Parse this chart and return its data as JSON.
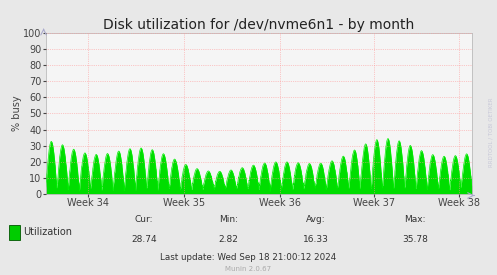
{
  "title": "Disk utilization for /dev/nvme6n1 - by month",
  "ylabel": "% busy",
  "background_color": "#e8e8e8",
  "plot_bg_color": "#f5f5f5",
  "grid_color": "#ff9999",
  "line_color": "#00ee00",
  "fill_color": "#00dd00",
  "ylim": [
    0,
    100
  ],
  "yticks": [
    0,
    10,
    20,
    30,
    40,
    50,
    60,
    70,
    80,
    90,
    100
  ],
  "xtick_labels": [
    "Week 34",
    "Week 35",
    "Week 36",
    "Week 37",
    "Week 38"
  ],
  "legend_label": "Utilization",
  "legend_color": "#00cc00",
  "cur_val": "28.74",
  "min_val": "2.82",
  "avg_val": "16.33",
  "max_val": "35.78",
  "last_update": "Last update: Wed Sep 18 21:00:12 2024",
  "munin_version": "Munin 2.0.67",
  "watermark": "RRDTOOL / TOBI OETIKER",
  "title_fontsize": 10,
  "axis_fontsize": 7,
  "tick_fontsize": 7,
  "n_cycles": 38,
  "max_peak": 35.0,
  "min_trough": 1.5
}
